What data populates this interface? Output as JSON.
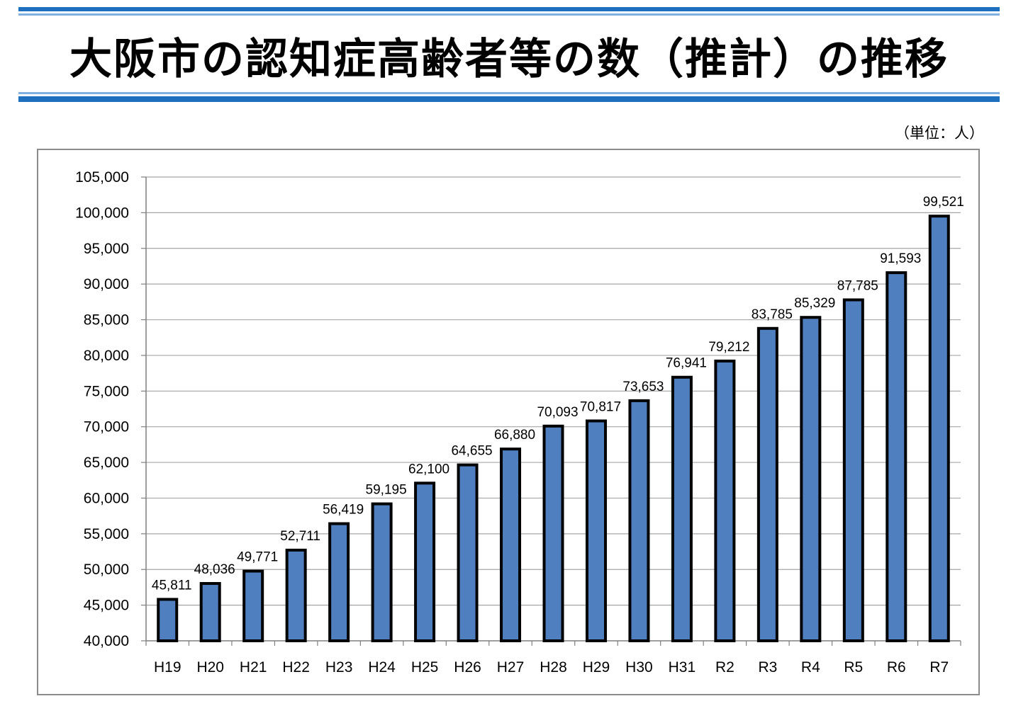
{
  "title": "大阪市の認知症高齢者等の数（推計）の推移",
  "unit_note": "（単位：人）",
  "colors": {
    "bar": "#4f7fbf",
    "bar_border": "#000000",
    "rule": "#1f6fbf",
    "grid": "#a6a6a6"
  },
  "chart_data": {
    "type": "bar",
    "title": "大阪市の認知症高齢者等の数（推計）の推移",
    "xlabel": "",
    "ylabel": "",
    "ylim": [
      40000,
      105000
    ],
    "ytick_step": 5000,
    "ytick_labels": [
      "40,000",
      "45,000",
      "50,000",
      "55,000",
      "60,000",
      "65,000",
      "70,000",
      "75,000",
      "80,000",
      "85,000",
      "90,000",
      "95,000",
      "100,000",
      "105,000"
    ],
    "grid": true,
    "categories": [
      "H19",
      "H20",
      "H21",
      "H22",
      "H23",
      "H24",
      "H25",
      "H26",
      "H27",
      "H28",
      "H29",
      "H30",
      "H31",
      "R2",
      "R3",
      "R4",
      "R5",
      "R6",
      "R7"
    ],
    "values": [
      45811,
      48036,
      49771,
      52711,
      56419,
      59195,
      62100,
      64655,
      66880,
      70093,
      70817,
      73653,
      76941,
      79212,
      83785,
      85329,
      87785,
      91593,
      99521
    ],
    "data_labels": [
      "45,811",
      "48,036",
      "49,771",
      "52,711",
      "56,419",
      "59,195",
      "62,100",
      "64,655",
      "66,880",
      "70,093",
      "70,817",
      "73,653",
      "76,941",
      "79,212",
      "83,785",
      "85,329",
      "87,785",
      "91,593",
      "99,521"
    ]
  }
}
